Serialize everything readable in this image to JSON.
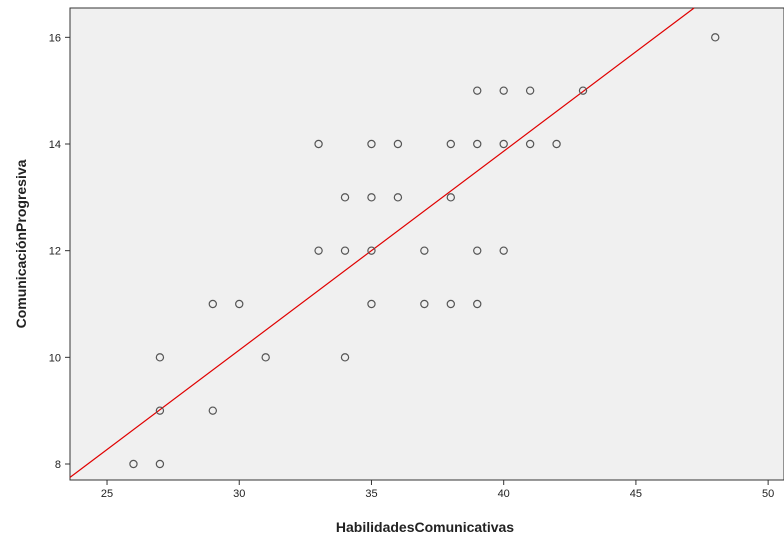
{
  "chart_data": {
    "type": "scatter",
    "xlabel": "HabilidadesComunicativas",
    "ylabel": "ComunicaciónProgresiva",
    "xlim": [
      23.6,
      50.6
    ],
    "ylim": [
      7.7,
      16.55
    ],
    "xticks": [
      25,
      30,
      35,
      40,
      45,
      50
    ],
    "yticks": [
      8,
      10,
      12,
      14,
      16
    ],
    "grid": false,
    "legend": "none",
    "series": [
      {
        "points": [
          [
            26,
            8
          ],
          [
            27,
            8
          ],
          [
            27,
            9
          ],
          [
            27,
            10
          ],
          [
            29,
            9
          ],
          [
            29,
            11
          ],
          [
            30,
            11
          ],
          [
            31,
            10
          ],
          [
            33,
            12
          ],
          [
            33,
            14
          ],
          [
            34,
            10
          ],
          [
            34,
            12
          ],
          [
            34,
            13
          ],
          [
            35,
            11
          ],
          [
            35,
            12
          ],
          [
            35,
            13
          ],
          [
            35,
            14
          ],
          [
            36,
            13
          ],
          [
            36,
            14
          ],
          [
            37,
            11
          ],
          [
            37,
            12
          ],
          [
            38,
            11
          ],
          [
            38,
            13
          ],
          [
            38,
            14
          ],
          [
            39,
            11
          ],
          [
            39,
            12
          ],
          [
            39,
            14
          ],
          [
            39,
            15
          ],
          [
            40,
            12
          ],
          [
            40,
            14
          ],
          [
            40,
            15
          ],
          [
            41,
            14
          ],
          [
            41,
            15
          ],
          [
            42,
            14
          ],
          [
            43,
            15
          ],
          [
            48,
            16
          ]
        ]
      }
    ],
    "fit_line": {
      "x": [
        23.6,
        47.2
      ],
      "y": [
        7.75,
        16.55
      ]
    },
    "colors": {
      "plot_bg": "#f0f0f0",
      "marker": "#555555",
      "fit_line": "#e00000",
      "frame": "#333333"
    }
  }
}
